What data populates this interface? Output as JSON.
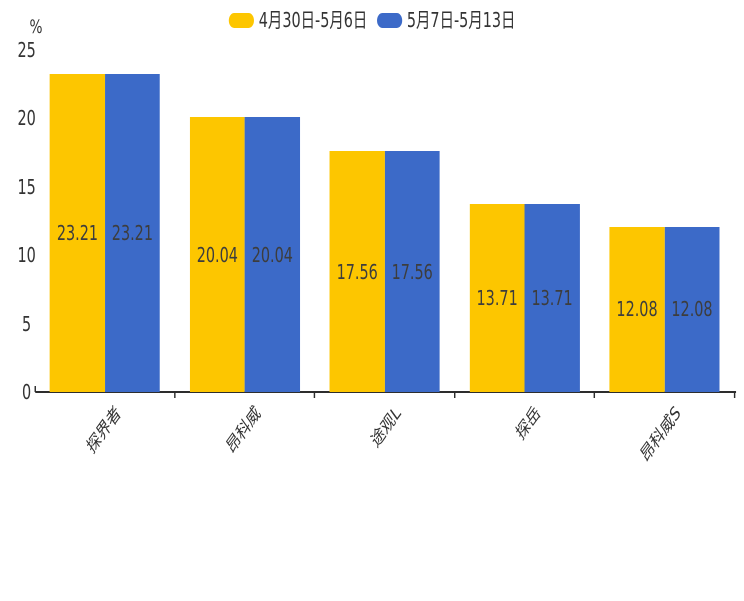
{
  "legend": {
    "items": [
      {
        "label": "4月30日-5月6日",
        "color": "#FDC600"
      },
      {
        "label": "5月7日-5月13日",
        "color": "#3C6AC8"
      }
    ]
  },
  "chart_data": {
    "type": "bar",
    "title": "",
    "xlabel": "",
    "ylabel": "%",
    "categories": [
      "探界者",
      "昂科威",
      "途观L",
      "探岳",
      "昂科威S"
    ],
    "series": [
      {
        "name": "4月30日-5月6日",
        "color": "#FDC600",
        "values": [
          23.21,
          20.04,
          17.56,
          13.71,
          12.08
        ]
      },
      {
        "name": "5月7日-5月13日",
        "color": "#3C6AC8",
        "values": [
          23.21,
          20.04,
          17.56,
          13.71,
          12.08
        ]
      }
    ],
    "ylim": [
      0,
      25
    ],
    "y_ticks": [
      0,
      5,
      10,
      15,
      20,
      25
    ],
    "grid": false,
    "legend_position": "top",
    "value_label_position": "inside-center",
    "value_label_color": "#3d3d3d",
    "axis_color": "#2d2d2d",
    "background": "#ffffff"
  }
}
